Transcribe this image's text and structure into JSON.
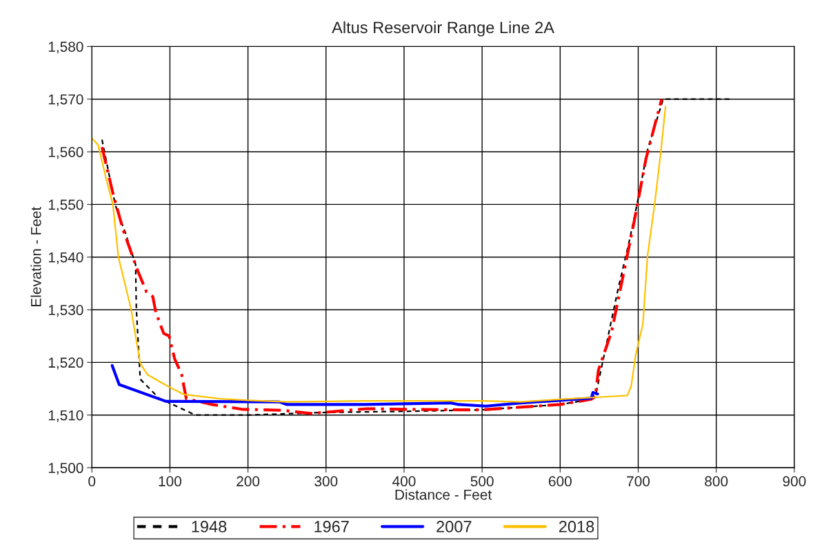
{
  "chart_data": {
    "type": "line",
    "title": "Altus Reservoir Range Line 2A",
    "xlabel": "Distance - Feet",
    "ylabel": "Elevation - Feet",
    "xlim": [
      0,
      900
    ],
    "xticks": [
      0,
      100,
      200,
      300,
      400,
      500,
      600,
      700,
      800,
      900
    ],
    "ylim": [
      1500,
      1580
    ],
    "yticks": [
      {
        "value": 1500,
        "label": "1,500"
      },
      {
        "value": 1510,
        "label": "1,510"
      },
      {
        "value": 1520,
        "label": "1,520"
      },
      {
        "value": 1530,
        "label": "1,530"
      },
      {
        "value": 1540,
        "label": "1,540"
      },
      {
        "value": 1550,
        "label": "1,550"
      },
      {
        "value": 1560,
        "label": "1,560"
      },
      {
        "value": 1570,
        "label": "1,570"
      },
      {
        "value": 1580,
        "label": "1,580"
      }
    ],
    "grid": true,
    "legend": "bottom",
    "marker": "none",
    "series": [
      {
        "name": "1948",
        "color": "#000000",
        "line_style": "dashed",
        "x": [
          13,
          30,
          43,
          56,
          57,
          61,
          62,
          86,
          124,
          132,
          200,
          300,
          400,
          500,
          600,
          640,
          646,
          674,
          689,
          699,
          712,
          732,
          819
        ],
        "values": [
          1562.3,
          1549.9,
          1544.6,
          1538.6,
          1530.2,
          1519.4,
          1516.8,
          1513.2,
          1510.6,
          1510,
          1510,
          1510.5,
          1510.7,
          1511,
          1512,
          1513,
          1514.1,
          1533.8,
          1543.3,
          1550.4,
          1560.4,
          1570,
          1570
        ]
      },
      {
        "name": "1967",
        "color": "#ff0000",
        "line_style": "dashed",
        "x": [
          13,
          27,
          40,
          59,
          70,
          78,
          82,
          92,
          99,
          106,
          115,
          118,
          121,
          154,
          192,
          245,
          280,
          353,
          398,
          471,
          500,
          600,
          640,
          645,
          649,
          666,
          680,
          695,
          710,
          730
        ],
        "values": [
          1560.9,
          1552.1,
          1545.2,
          1537.3,
          1533.4,
          1532.5,
          1529.5,
          1525.5,
          1525,
          1520.7,
          1517.7,
          1515.4,
          1513.1,
          1512,
          1511.1,
          1510.9,
          1510.3,
          1511.2,
          1511.1,
          1511,
          1511,
          1512,
          1513,
          1513.5,
          1518.5,
          1525.9,
          1536,
          1546.9,
          1558.7,
          1570
        ]
      },
      {
        "name": "2007",
        "color": "#0000ff",
        "line_style": "solid",
        "x": [
          26,
          35,
          95,
          240,
          250,
          350,
          460,
          470,
          505,
          550,
          600,
          640,
          642,
          648
        ],
        "values": [
          1519.4,
          1515.8,
          1512.6,
          1512.5,
          1512,
          1512,
          1512.3,
          1512,
          1511.7,
          1512.3,
          1512.8,
          1513.2,
          1514.3,
          1514
        ]
      },
      {
        "name": "2018",
        "color": "#ffc000",
        "line_style": "solid",
        "x": [
          0,
          8,
          18,
          27,
          34,
          50,
          62,
          71,
          97,
          118,
          165,
          200,
          250,
          350,
          500,
          550,
          600,
          650,
          686,
          691,
          697,
          706,
          712,
          721,
          729,
          735
        ],
        "values": [
          1562.6,
          1561.3,
          1555.1,
          1549.9,
          1540,
          1530.3,
          1519.8,
          1517.7,
          1515.5,
          1513.9,
          1513.1,
          1512.8,
          1512.5,
          1512.7,
          1512.7,
          1512.5,
          1513,
          1513.4,
          1513.7,
          1515.5,
          1521.6,
          1527.3,
          1540.3,
          1550,
          1560,
          1568.6
        ]
      }
    ]
  }
}
